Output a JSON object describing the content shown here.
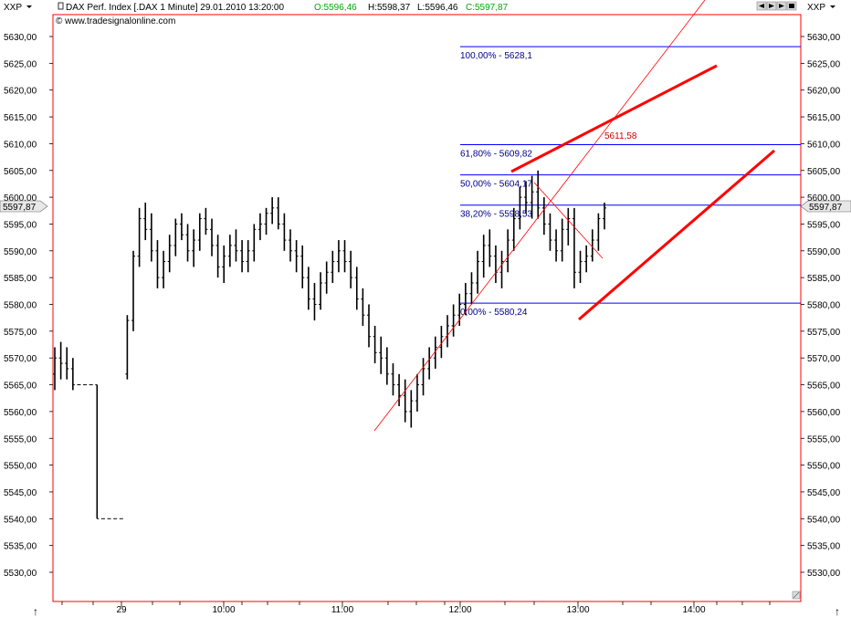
{
  "toolbar": {
    "left_dropdown": "XXP",
    "right_dropdown": "XXP",
    "header_text": "DAX Perf. Index [.DAX  1 Minute] 29.01.2010 13:20:00",
    "ohlc": {
      "open": "O:5596,46",
      "high": "H:5598,37",
      "low": "L:5596,46",
      "close": "C:5597,87"
    },
    "copyright": "© www.tradesignalonline.com"
  },
  "colors": {
    "frame": "#ff0000",
    "fib_line": "#0000ff",
    "fib_label": "#00008b",
    "trendline": "#ff0000",
    "price_bar": "#000000",
    "open_color": "#00aa00",
    "close_color": "#00aa00"
  },
  "chart_data": {
    "type": "ohlc",
    "title": "DAX Perf. Index [.DAX  1 Minute] 29.01.2010 13:20:00",
    "ylim": [
      5525,
      5632
    ],
    "y_ticks": [
      "5630,00",
      "5625,00",
      "5620,00",
      "5615,00",
      "5610,00",
      "5605,00",
      "5600,00",
      "5595,00",
      "5590,00",
      "5585,00",
      "5580,00",
      "5575,00",
      "5570,00",
      "5565,00",
      "5560,00",
      "5555,00",
      "5550,00",
      "5545,00",
      "5540,00",
      "5535,00",
      "5530,00"
    ],
    "y_tick_values": [
      5630,
      5625,
      5620,
      5615,
      5610,
      5605,
      5600,
      5595,
      5590,
      5585,
      5580,
      5575,
      5570,
      5565,
      5560,
      5555,
      5550,
      5545,
      5540,
      5535,
      5530
    ],
    "x_ticks": [
      "29",
      "10:00",
      "11:00",
      "12:00",
      "13:00",
      "14:00"
    ],
    "last_price_label": "5597,87",
    "last_price": 5597.87,
    "fib_levels": [
      {
        "label": "100,00% - 5628,1",
        "value": 5628.1
      },
      {
        "label": "61,80% - 5609,82",
        "value": 5609.82
      },
      {
        "label": "50,00% - 5604,17",
        "value": 5604.17
      },
      {
        "label": "38,20% - 5598,53",
        "value": 5598.53
      },
      {
        "label": "0,00% - 5580,24",
        "value": 5580.24
      }
    ],
    "annotation": {
      "label": "5611,58",
      "value": 5611.58
    },
    "price_path": [
      [
        5567,
        5572,
        5564,
        5570
      ],
      [
        5570,
        5573,
        5566,
        5569
      ],
      [
        5569,
        5572,
        5566,
        5568
      ],
      [
        5568,
        5570,
        5564,
        5565
      ],
      [
        5565,
        5565,
        5565,
        5565
      ],
      [
        5565,
        5565,
        5565,
        5565
      ],
      [
        5565,
        5565,
        5565,
        5565
      ],
      [
        5565,
        5565,
        5540,
        5540
      ],
      [
        5540,
        5540,
        5540,
        5540
      ],
      [
        5540,
        5540,
        5540,
        5540
      ],
      [
        5540,
        5540,
        5540,
        5540
      ],
      [
        5540,
        5540,
        5540,
        5540
      ],
      [
        5567,
        5578,
        5566,
        5577
      ],
      [
        5577,
        5590,
        5575,
        5589
      ],
      [
        5589,
        5598,
        5587,
        5596
      ],
      [
        5596,
        5599,
        5592,
        5594
      ],
      [
        5594,
        5597,
        5588,
        5590
      ],
      [
        5590,
        5592,
        5583,
        5585
      ],
      [
        5585,
        5590,
        5583,
        5588
      ],
      [
        5588,
        5593,
        5586,
        5591
      ],
      [
        5591,
        5596,
        5589,
        5595
      ],
      [
        5595,
        5597,
        5592,
        5593
      ],
      [
        5593,
        5595,
        5588,
        5590
      ],
      [
        5590,
        5594,
        5587,
        5592
      ],
      [
        5592,
        5597,
        5590,
        5596
      ],
      [
        5596,
        5598,
        5593,
        5594
      ],
      [
        5594,
        5596,
        5589,
        5591
      ],
      [
        5591,
        5593,
        5585,
        5587
      ],
      [
        5587,
        5591,
        5584,
        5589
      ],
      [
        5589,
        5593,
        5587,
        5591
      ],
      [
        5591,
        5594,
        5588,
        5590
      ],
      [
        5590,
        5592,
        5586,
        5588
      ],
      [
        5588,
        5592,
        5586,
        5590
      ],
      [
        5590,
        5595,
        5588,
        5594
      ],
      [
        5594,
        5597,
        5592,
        5595
      ],
      [
        5595,
        5598,
        5593,
        5597
      ],
      [
        5597,
        5600,
        5595,
        5598
      ],
      [
        5598,
        5600,
        5594,
        5595
      ],
      [
        5595,
        5597,
        5590,
        5592
      ],
      [
        5592,
        5594,
        5588,
        5590
      ],
      [
        5590,
        5592,
        5586,
        5589
      ],
      [
        5589,
        5591,
        5583,
        5585
      ],
      [
        5585,
        5587,
        5579,
        5581
      ],
      [
        5581,
        5584,
        5577,
        5580
      ],
      [
        5580,
        5586,
        5579,
        5584
      ],
      [
        5584,
        5588,
        5582,
        5586
      ],
      [
        5586,
        5590,
        5584,
        5588
      ],
      [
        5588,
        5592,
        5586,
        5590
      ],
      [
        5590,
        5592,
        5586,
        5588
      ],
      [
        5588,
        5590,
        5583,
        5585
      ],
      [
        5585,
        5587,
        5579,
        5581
      ],
      [
        5581,
        5583,
        5576,
        5578
      ],
      [
        5578,
        5580,
        5572,
        5574
      ],
      [
        5574,
        5576,
        5569,
        5571
      ],
      [
        5571,
        5574,
        5567,
        5570
      ],
      [
        5570,
        5572,
        5565,
        5567
      ],
      [
        5567,
        5569,
        5563,
        5565
      ],
      [
        5565,
        5567,
        5561,
        5563
      ],
      [
        5563,
        5566,
        5558,
        5560
      ],
      [
        5560,
        5564,
        5557,
        5562
      ],
      [
        5562,
        5567,
        5560,
        5565
      ],
      [
        5565,
        5570,
        5563,
        5568
      ],
      [
        5568,
        5572,
        5566,
        5570
      ],
      [
        5570,
        5574,
        5568,
        5572
      ],
      [
        5572,
        5576,
        5570,
        5574
      ],
      [
        5574,
        5578,
        5572,
        5576
      ],
      [
        5576,
        5580,
        5574,
        5578
      ],
      [
        5578,
        5582,
        5576,
        5580
      ],
      [
        5580,
        5584,
        5578,
        5582
      ],
      [
        5582,
        5586,
        5580,
        5584
      ],
      [
        5584,
        5590,
        5582,
        5588
      ],
      [
        5588,
        5593,
        5585,
        5591
      ],
      [
        5591,
        5594,
        5587,
        5589
      ],
      [
        5589,
        5591,
        5584,
        5586
      ],
      [
        5586,
        5590,
        5583,
        5588
      ],
      [
        5588,
        5594,
        5586,
        5592
      ],
      [
        5592,
        5598,
        5590,
        5596
      ],
      [
        5596,
        5602,
        5594,
        5600
      ],
      [
        5600,
        5603,
        5597,
        5599
      ],
      [
        5599,
        5604,
        5596,
        5601
      ],
      [
        5601,
        5605,
        5596,
        5598
      ],
      [
        5598,
        5600,
        5593,
        5595
      ],
      [
        5595,
        5597,
        5590,
        5592
      ],
      [
        5592,
        5594,
        5588,
        5590
      ],
      [
        5590,
        5596,
        5588,
        5594
      ],
      [
        5594,
        5598,
        5591,
        5596
      ],
      [
        5596,
        5598,
        5583,
        5586
      ],
      [
        5586,
        5590,
        5584,
        5588
      ],
      [
        5588,
        5591,
        5586,
        5589
      ],
      [
        5589,
        5594,
        5588,
        5592
      ],
      [
        5592,
        5597,
        5590,
        5596
      ],
      [
        5596,
        5599,
        5594,
        5598
      ]
    ]
  }
}
